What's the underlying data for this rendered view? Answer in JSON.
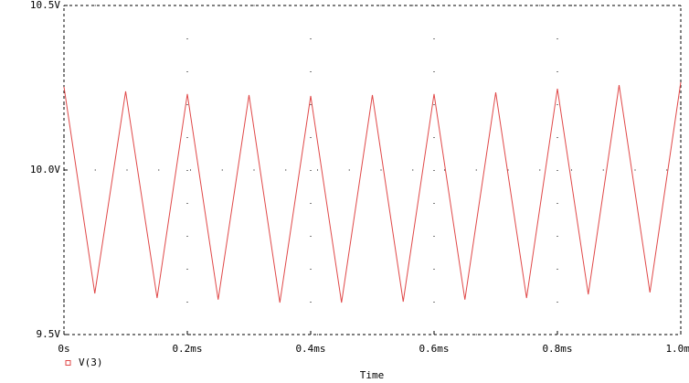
{
  "chart_data": {
    "type": "line",
    "xlabel": "Time",
    "x": [
      0,
      0.05,
      0.1,
      0.151,
      0.2,
      0.25,
      0.3,
      0.35,
      0.4,
      0.45,
      0.5,
      0.55,
      0.6,
      0.65,
      0.7,
      0.75,
      0.8,
      0.85,
      0.9,
      0.95,
      1.0
    ],
    "series": [
      {
        "name": "V(3)",
        "color": "#e04848",
        "values": [
          10.253,
          9.625,
          10.239,
          9.611,
          10.231,
          9.606,
          10.228,
          9.597,
          10.225,
          9.597,
          10.228,
          9.6,
          10.231,
          9.606,
          10.236,
          9.611,
          10.247,
          9.622,
          10.258,
          9.628,
          10.267
        ]
      }
    ],
    "xlim": [
      0,
      1.0
    ],
    "xticks": [
      {
        "value": 0,
        "label": "0s"
      },
      {
        "value": 0.2,
        "label": "0.2ms"
      },
      {
        "value": 0.4,
        "label": "0.4ms"
      },
      {
        "value": 0.6,
        "label": "0.6ms"
      },
      {
        "value": 0.8,
        "label": "0.8ms"
      },
      {
        "value": 1.0,
        "label": "1.0ms"
      }
    ],
    "ylim": [
      9.5,
      10.5
    ],
    "yticks": [
      {
        "value": 9.5,
        "label": "9.5V"
      },
      {
        "value": 10.0,
        "label": "10.0V"
      },
      {
        "value": 10.5,
        "label": "10.5V"
      }
    ],
    "grid": true
  }
}
